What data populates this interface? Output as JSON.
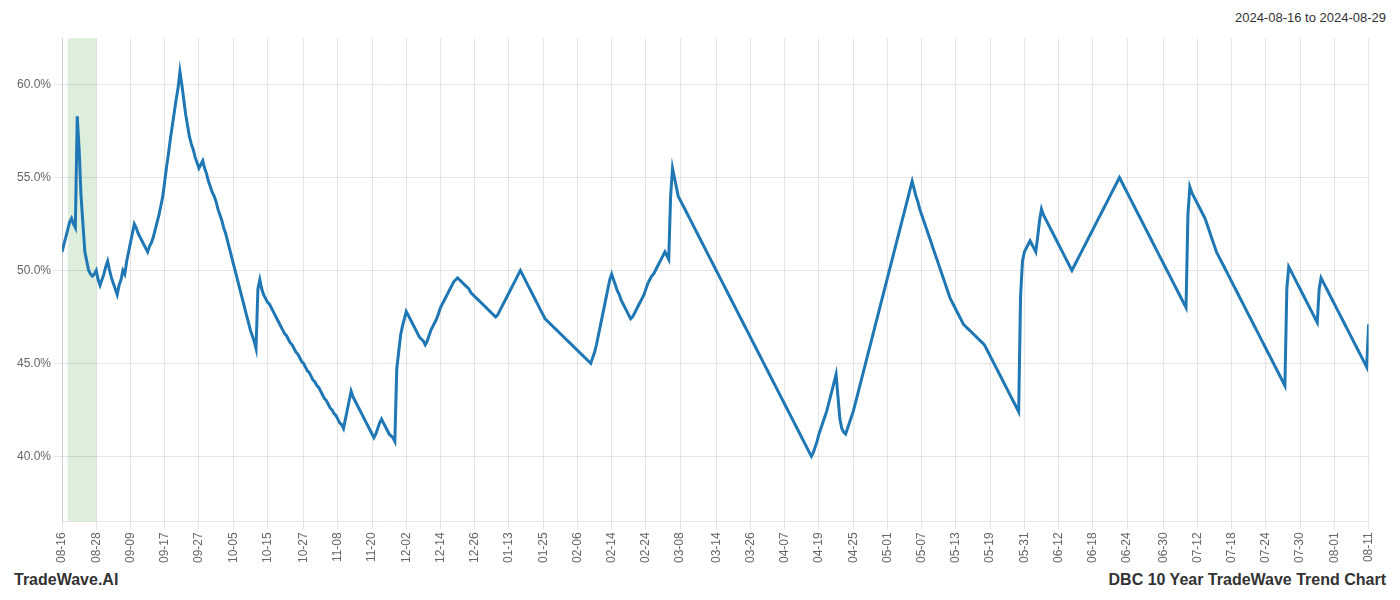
{
  "chart_data": {
    "type": "line",
    "title": "DBC 10 Year TradeWave Trend Chart",
    "subtitle": "2024-08-16 to 2024-08-29",
    "annotations": [
      "TradeWave.AI"
    ],
    "color": "#1f77b4",
    "grid": true,
    "ylim": [
      0.365,
      0.625
    ],
    "yticks": [
      {
        "value": 0.4,
        "label": "40.0%"
      },
      {
        "value": 0.45,
        "label": "45.0%"
      },
      {
        "value": 0.5,
        "label": "50.0%"
      },
      {
        "value": 0.55,
        "label": "55.0%"
      },
      {
        "value": 0.6,
        "label": "60.0%"
      }
    ],
    "highlight": {
      "start": 3,
      "end": 18,
      "color": "#ddeedd"
    },
    "categories": [
      "08-16",
      null,
      null,
      null,
      null,
      null,
      null,
      null,
      null,
      null,
      null,
      null,
      null,
      null,
      null,
      null,
      null,
      null,
      "08-28",
      null,
      null,
      null,
      null,
      null,
      null,
      null,
      null,
      null,
      null,
      null,
      null,
      null,
      null,
      null,
      null,
      null,
      "09-09",
      null,
      null,
      null,
      null,
      null,
      null,
      null,
      null,
      null,
      null,
      null,
      null,
      null,
      null,
      null,
      null,
      null,
      "09-17",
      null,
      null,
      null,
      null,
      null,
      null,
      null,
      null,
      null,
      null,
      null,
      null,
      null,
      null,
      null,
      null,
      null,
      "09-27",
      null,
      null,
      null,
      null,
      null,
      null,
      null,
      null,
      null,
      null,
      null,
      null,
      null,
      null,
      null,
      null,
      null,
      "10-05",
      null,
      null,
      null,
      null,
      null,
      null,
      null,
      null,
      null,
      null,
      null,
      null,
      null,
      null,
      null,
      null,
      null,
      "10-15",
      null,
      null,
      null,
      null,
      null,
      null,
      null,
      null,
      null,
      null,
      null,
      null,
      null,
      null,
      null,
      null,
      null,
      null,
      "10-27",
      null,
      null,
      null,
      null,
      null,
      null,
      null,
      null,
      null,
      null,
      null,
      null,
      null,
      null,
      null,
      null,
      null,
      "11-08",
      null,
      null,
      null,
      null,
      null,
      null,
      null,
      null,
      null,
      null,
      null,
      null,
      null,
      null,
      null,
      null,
      null,
      "11-20",
      null,
      null,
      null,
      null,
      null,
      null,
      null,
      null,
      null,
      null,
      null,
      null,
      null,
      null,
      null,
      null,
      null,
      "12-02",
      null,
      null,
      null,
      null,
      null,
      null,
      null,
      null,
      null,
      null,
      null,
      null,
      null,
      null,
      null,
      null,
      null,
      "12-14",
      null,
      null,
      null,
      null,
      null,
      null,
      null,
      null,
      null,
      null,
      null,
      null,
      null,
      null,
      null,
      null,
      null,
      "12-26",
      null,
      null,
      null,
      null,
      null,
      null,
      null,
      null,
      null,
      null,
      null,
      null,
      null,
      null,
      null,
      null,
      null,
      "01-13",
      null,
      null,
      null,
      null,
      null,
      null,
      null,
      null,
      null,
      null,
      null,
      null,
      null,
      null,
      null,
      null,
      null,
      "01-25",
      null,
      null,
      null,
      null,
      null,
      null,
      null,
      null,
      null,
      null,
      null,
      null,
      null,
      null,
      null,
      null,
      null,
      "02-06",
      null,
      null,
      null,
      null,
      null,
      null,
      null,
      null,
      null,
      null,
      null,
      null,
      null,
      null,
      null,
      null,
      null,
      "02-14",
      null,
      null,
      null,
      null,
      null,
      null,
      null,
      null,
      null,
      null,
      null,
      null,
      null,
      null,
      null,
      null,
      null,
      "02-24",
      null,
      null,
      null,
      null,
      null,
      null,
      null,
      null,
      null,
      null,
      null,
      null,
      null,
      null,
      null,
      null,
      null,
      "03-08",
      null,
      null,
      null,
      null,
      null,
      null,
      null,
      null,
      null,
      null,
      null,
      null,
      null,
      null,
      null,
      null,
      null,
      null,
      "03-14",
      null,
      null,
      null,
      null,
      null,
      null,
      null,
      null,
      null,
      null,
      null,
      null,
      null,
      null,
      null,
      null,
      null,
      "03-26",
      null,
      null,
      null,
      null,
      null,
      null,
      null,
      null,
      null,
      null,
      null,
      null,
      null,
      null,
      null,
      null,
      null,
      "04-07",
      null,
      null,
      null,
      null,
      null,
      null,
      null,
      null,
      null,
      null,
      null,
      null,
      null,
      null,
      null,
      null,
      null,
      "04-19",
      null,
      null,
      null,
      null,
      null,
      null,
      null,
      null,
      null,
      null,
      null,
      null,
      null,
      null,
      null,
      null,
      null,
      "04-25",
      null,
      null,
      null,
      null,
      null,
      null,
      null,
      null,
      null,
      null,
      null,
      null,
      null,
      null,
      null,
      null,
      null,
      "05-01",
      null,
      null,
      null,
      null,
      null,
      null,
      null,
      null,
      null,
      null,
      null,
      null,
      null,
      null,
      null,
      null,
      null,
      "05-07",
      null,
      null,
      null,
      null,
      null,
      null,
      null,
      null,
      null,
      null,
      null,
      null,
      null,
      null,
      null,
      null,
      null,
      "05-13",
      null,
      null,
      null,
      null,
      null,
      null,
      null,
      null,
      null,
      null,
      null,
      null,
      null,
      null,
      null,
      null,
      null,
      "05-19",
      null,
      null,
      null,
      null,
      null,
      null,
      null,
      null,
      null,
      null,
      null,
      null,
      null,
      null,
      null,
      null,
      null,
      "05-31",
      null,
      null,
      null,
      null,
      null,
      null,
      null,
      null,
      null,
      null,
      null,
      null,
      null,
      null,
      null,
      null,
      null,
      "06-12",
      null,
      null,
      null,
      null,
      null,
      null,
      null,
      null,
      null,
      null,
      null,
      null,
      null,
      null,
      null,
      null,
      null,
      "06-18",
      null,
      null,
      null,
      null,
      null,
      null,
      null,
      null,
      null,
      null,
      null,
      null,
      null,
      null,
      null,
      null,
      null,
      "06-24",
      null,
      null,
      null,
      null,
      null,
      null,
      null,
      null,
      null,
      null,
      null,
      null,
      null,
      null,
      null,
      null,
      null,
      null,
      "06-30",
      null,
      null,
      null,
      null,
      null,
      null,
      null,
      null,
      null,
      null,
      null,
      null,
      null,
      null,
      null,
      null,
      null,
      "07-12",
      null,
      null,
      null,
      null,
      null,
      null,
      null,
      null,
      null,
      null,
      null,
      null,
      null,
      null,
      null,
      null,
      null,
      "07-18",
      null,
      null,
      null,
      null,
      null,
      null,
      null,
      null,
      null,
      null,
      null,
      null,
      null,
      null,
      null,
      null,
      null,
      "07-24",
      null,
      null,
      null,
      null,
      null,
      null,
      null,
      null,
      null,
      null,
      null,
      null,
      null,
      null,
      null,
      null,
      null,
      "07-30",
      null,
      null,
      null,
      null,
      null,
      null,
      null,
      null,
      null,
      null,
      null,
      null,
      null,
      null,
      null,
      null,
      null,
      "08-01",
      null,
      null,
      null,
      null,
      null,
      null,
      null,
      null,
      null,
      null,
      null,
      null,
      null,
      null,
      null,
      null,
      null,
      "08-11"
    ],
    "values": [
      0.51,
      0.514,
      0.518,
      0.522,
      0.526,
      0.528,
      0.525,
      0.523,
      0.583,
      0.565,
      0.54,
      0.525,
      0.51,
      0.505,
      0.5,
      0.498,
      0.497,
      0.498,
      0.5,
      0.495,
      0.492,
      0.495,
      0.498,
      0.502,
      0.505,
      0.5,
      0.496,
      0.493,
      0.49,
      0.487,
      0.492,
      0.495,
      0.5,
      0.498,
      0.505,
      0.51,
      0.515,
      0.52,
      0.525,
      0.523,
      0.52,
      0.518,
      0.516,
      0.514,
      0.512,
      0.51,
      0.513,
      0.515,
      0.518,
      0.522,
      0.526,
      0.53,
      0.535,
      0.54,
      0.548,
      0.556,
      0.563,
      0.571,
      0.578,
      0.585,
      0.592,
      0.598,
      0.607,
      0.6,
      0.592,
      0.584,
      0.578,
      0.572,
      0.568,
      0.565,
      0.561,
      0.558,
      0.555,
      0.557,
      0.559,
      0.555,
      0.552,
      0.548,
      0.545,
      0.542,
      0.54,
      0.537,
      0.533,
      0.53,
      0.527,
      0.523,
      0.52,
      0.516,
      0.512,
      0.508,
      0.504,
      0.5,
      0.496,
      0.492,
      0.488,
      0.484,
      0.48,
      0.476,
      0.472,
      0.468,
      0.465,
      0.462,
      0.458,
      0.49,
      0.495,
      0.49,
      0.487,
      0.485,
      0.483,
      0.482,
      0.48,
      0.478,
      0.476,
      0.474,
      0.472,
      0.47,
      0.468,
      0.466,
      0.465,
      0.463,
      0.461,
      0.46,
      0.458,
      0.456,
      0.455,
      0.453,
      0.451,
      0.45,
      0.448,
      0.446,
      0.445,
      0.443,
      0.441,
      0.44,
      0.438,
      0.437,
      0.435,
      0.433,
      0.431,
      0.43,
      0.428,
      0.426,
      0.425,
      0.423,
      0.422,
      0.42,
      0.418,
      0.417,
      0.415,
      0.42,
      0.425,
      0.43,
      0.435,
      0.432,
      0.43,
      0.428,
      0.426,
      0.424,
      0.422,
      0.42,
      0.418,
      0.416,
      0.414,
      0.412,
      0.41,
      0.412,
      0.415,
      0.418,
      0.42,
      0.418,
      0.416,
      0.414,
      0.412,
      0.411,
      0.41,
      0.408,
      0.447,
      0.456,
      0.465,
      0.47,
      0.474,
      0.478,
      0.476,
      0.474,
      0.472,
      0.47,
      0.468,
      0.466,
      0.464,
      0.463,
      0.462,
      0.46,
      0.462,
      0.465,
      0.468,
      0.47,
      0.472,
      0.474,
      0.477,
      0.48,
      0.482,
      0.484,
      0.486,
      0.488,
      0.49,
      0.492,
      0.494,
      0.495,
      0.496,
      0.495,
      0.494,
      0.493,
      0.492,
      0.491,
      0.49,
      0.488,
      0.487,
      0.486,
      0.485,
      0.484,
      0.483,
      0.482,
      0.481,
      0.48,
      0.479,
      0.478,
      0.477,
      0.476,
      0.475,
      0.476,
      0.478,
      0.48,
      0.482,
      0.484,
      0.486,
      0.488,
      0.49,
      0.492,
      0.494,
      0.496,
      0.498,
      0.5,
      0.498,
      0.496,
      0.494,
      0.492,
      0.49,
      0.488,
      0.486,
      0.484,
      0.482,
      0.48,
      0.478,
      0.476,
      0.474,
      0.473,
      0.472,
      0.471,
      0.47,
      0.469,
      0.468,
      0.467,
      0.466,
      0.465,
      0.464,
      0.463,
      0.462,
      0.461,
      0.46,
      0.459,
      0.458,
      0.457,
      0.456,
      0.455,
      0.454,
      0.453,
      0.452,
      0.451,
      0.45,
      0.453,
      0.456,
      0.46,
      0.465,
      0.47,
      0.475,
      0.48,
      0.485,
      0.49,
      0.495,
      0.498,
      0.495,
      0.492,
      0.489,
      0.487,
      0.484,
      0.482,
      0.48,
      0.478,
      0.476,
      0.474,
      0.475,
      0.477,
      0.479,
      0.481,
      0.483,
      0.485,
      0.487,
      0.49,
      0.493,
      0.495,
      0.497,
      0.498,
      0.5,
      0.502,
      0.504,
      0.506,
      0.508,
      0.51,
      0.508,
      0.506,
      0.54,
      0.555,
      0.55,
      0.545,
      0.54,
      0.538,
      0.536,
      0.534,
      0.532,
      0.53,
      0.528,
      0.526,
      0.524,
      0.522,
      0.52,
      0.518,
      0.516,
      0.514,
      0.512,
      0.51,
      0.508,
      0.506,
      0.504,
      0.502,
      0.5,
      0.498,
      0.496,
      0.494,
      0.492,
      0.49,
      0.488,
      0.486,
      0.484,
      0.482,
      0.48,
      0.478,
      0.476,
      0.474,
      0.472,
      0.47,
      0.468,
      0.466,
      0.464,
      0.462,
      0.46,
      0.458,
      0.456,
      0.454,
      0.452,
      0.45,
      0.448,
      0.446,
      0.444,
      0.442,
      0.44,
      0.438,
      0.436,
      0.434,
      0.432,
      0.43,
      0.428,
      0.426,
      0.424,
      0.422,
      0.42,
      0.418,
      0.416,
      0.414,
      0.412,
      0.41,
      0.408,
      0.406,
      0.404,
      0.402,
      0.4,
      0.402,
      0.405,
      0.408,
      0.412,
      0.415,
      0.418,
      0.421,
      0.424,
      0.428,
      0.432,
      0.436,
      0.44,
      0.444,
      0.432,
      0.42,
      0.415,
      0.413,
      0.412,
      0.415,
      0.418,
      0.421,
      0.424,
      0.428,
      0.432,
      0.436,
      0.44,
      0.444,
      0.448,
      0.452,
      0.456,
      0.46,
      0.464,
      0.468,
      0.472,
      0.476,
      0.48,
      0.484,
      0.488,
      0.492,
      0.496,
      0.5,
      0.504,
      0.508,
      0.512,
      0.516,
      0.52,
      0.524,
      0.528,
      0.532,
      0.536,
      0.54,
      0.544,
      0.548,
      0.544,
      0.54,
      0.537,
      0.533,
      0.53,
      0.527,
      0.524,
      0.521,
      0.518,
      0.515,
      0.512,
      0.509,
      0.506,
      0.503,
      0.5,
      0.497,
      0.494,
      0.491,
      0.488,
      0.485,
      0.483,
      0.481,
      0.479,
      0.477,
      0.475,
      0.473,
      0.471,
      0.47,
      0.469,
      0.468,
      0.467,
      0.466,
      0.465,
      0.464,
      0.463,
      0.462,
      0.461,
      0.46,
      0.458,
      0.456,
      0.454,
      0.452,
      0.45,
      0.448,
      0.446,
      0.444,
      0.442,
      0.44,
      0.438,
      0.436,
      0.434,
      0.432,
      0.43,
      0.428,
      0.426,
      0.424,
      0.486,
      0.505,
      0.51,
      0.512,
      0.514,
      0.516,
      0.514,
      0.512,
      0.51,
      0.518,
      0.527,
      0.533,
      0.53,
      0.528,
      0.526,
      0.524,
      0.522,
      0.52,
      0.518,
      0.516,
      0.514,
      0.512,
      0.51,
      0.508,
      0.506,
      0.504,
      0.502,
      0.5,
      0.502,
      0.504,
      0.506,
      0.508,
      0.51,
      0.512,
      0.514,
      0.516,
      0.518,
      0.52,
      0.522,
      0.524,
      0.526,
      0.528,
      0.53,
      0.532,
      0.534,
      0.536,
      0.538,
      0.54,
      0.542,
      0.544,
      0.546,
      0.548,
      0.55,
      0.548,
      0.546,
      0.544,
      0.542,
      0.54,
      0.538,
      0.536,
      0.534,
      0.532,
      0.53,
      0.528,
      0.526,
      0.524,
      0.522,
      0.52,
      0.518,
      0.516,
      0.514,
      0.512,
      0.51,
      0.508,
      0.506,
      0.504,
      0.502,
      0.5,
      0.498,
      0.496,
      0.494,
      0.492,
      0.49,
      0.488,
      0.486,
      0.484,
      0.482,
      0.48,
      0.53,
      0.545,
      0.542,
      0.54,
      0.538,
      0.536,
      0.534,
      0.532,
      0.53,
      0.528,
      0.525,
      0.522,
      0.519,
      0.516,
      0.513,
      0.51,
      0.508,
      0.506,
      0.504,
      0.502,
      0.5,
      0.498,
      0.496,
      0.494,
      0.492,
      0.49,
      0.488,
      0.486,
      0.484,
      0.482,
      0.48,
      0.478,
      0.476,
      0.474,
      0.472,
      0.47,
      0.468,
      0.466,
      0.464,
      0.462,
      0.46,
      0.458,
      0.456,
      0.454,
      0.452,
      0.45,
      0.448,
      0.446,
      0.444,
      0.442,
      0.44,
      0.438,
      0.49,
      0.502,
      0.5,
      0.498,
      0.496,
      0.494,
      0.492,
      0.49,
      0.488,
      0.486,
      0.484,
      0.482,
      0.48,
      0.478,
      0.476,
      0.474,
      0.472,
      0.49,
      0.496,
      0.494,
      0.492,
      0.49,
      0.488,
      0.486,
      0.484,
      0.482,
      0.48,
      0.478,
      0.476,
      0.474,
      0.472,
      0.47,
      0.468,
      0.466,
      0.464,
      0.462,
      0.46,
      0.458,
      0.456,
      0.454,
      0.452,
      0.45,
      0.448,
      0.471
    ]
  }
}
